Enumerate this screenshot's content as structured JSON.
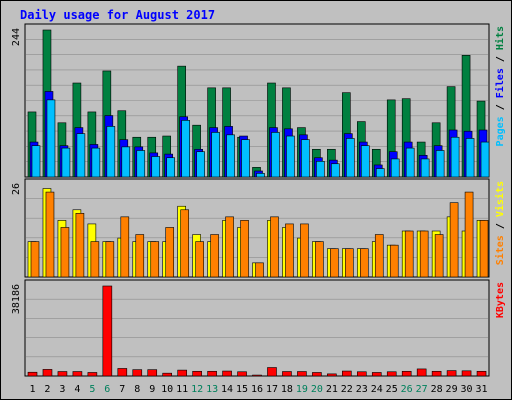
{
  "chart_data": {
    "type": "bar",
    "title": "Daily usage for August 2017",
    "days": [
      "1",
      "2",
      "3",
      "4",
      "5",
      "6",
      "7",
      "8",
      "9",
      "10",
      "11",
      "12",
      "13",
      "14",
      "15",
      "16",
      "17",
      "18",
      "19",
      "20",
      "21",
      "22",
      "23",
      "24",
      "25",
      "26",
      "27",
      "28",
      "29",
      "30",
      "31"
    ],
    "weekend_days": [
      "5",
      "6",
      "12",
      "13",
      "19",
      "20",
      "26",
      "27"
    ],
    "panels": [
      {
        "id": "hits",
        "ylabel_parts": [
          "Pages",
          "Files",
          "Hits"
        ],
        "ymax_label": "244",
        "ymax": 244,
        "series": [
          {
            "name": "Hits",
            "color": "#008040",
            "values": [
              108,
              244,
              90,
              156,
              108,
              176,
              110,
              66,
              66,
              68,
              184,
              86,
              148,
              148,
              66,
              16,
              156,
              148,
              82,
              46,
              46,
              140,
              92,
              46,
              128,
              130,
              58,
              90,
              150,
              202,
              126
            ]
          },
          {
            "name": "Files",
            "color": "#0000FF",
            "values": [
              58,
              142,
              52,
              82,
              54,
              102,
              62,
              50,
              40,
              38,
              100,
              46,
              82,
              84,
              68,
              10,
              82,
              80,
              70,
              32,
              28,
              72,
              58,
              20,
              42,
              58,
              36,
              52,
              78,
              76,
              78
            ]
          },
          {
            "name": "Pages",
            "color": "#00BFFF",
            "values": [
              52,
              128,
              48,
              72,
              48,
              84,
              50,
              44,
              34,
              32,
              94,
              42,
              74,
              70,
              62,
              6,
              74,
              68,
              62,
              26,
              22,
              64,
              52,
              14,
              30,
              48,
              30,
              44,
              66,
              64,
              58
            ]
          }
        ]
      },
      {
        "id": "visits",
        "ylabel_parts": [
          "Sites",
          "Visits"
        ],
        "ymax_label": "26",
        "ymax": 26,
        "series": [
          {
            "name": "Visits",
            "color": "#FFFF00",
            "values": [
              10,
              25,
              16,
              19,
              15,
              10,
              11,
              10,
              10,
              10,
              20,
              12,
              10,
              16,
              14,
              4,
              16,
              14,
              11,
              10,
              8,
              8,
              8,
              10,
              9,
              13,
              13,
              13,
              17,
              13,
              16
            ]
          },
          {
            "name": "Sites",
            "color": "#FF8000",
            "values": [
              10,
              24,
              14,
              18,
              10,
              10,
              17,
              12,
              10,
              14,
              19,
              10,
              12,
              17,
              16,
              4,
              17,
              15,
              15,
              10,
              8,
              8,
              8,
              12,
              9,
              13,
              13,
              12,
              21,
              24,
              16
            ]
          }
        ]
      },
      {
        "id": "kbytes",
        "ylabel_parts": [
          "KBytes"
        ],
        "ymax_label": "38186",
        "ymax": 38186,
        "series": [
          {
            "name": "KBytes",
            "color": "#FF0000",
            "values": [
              1600,
              2800,
              1900,
              1900,
              1500,
              38186,
              3200,
              2700,
              2700,
              1200,
              2500,
              2000,
              2000,
              2100,
              1800,
              400,
              3600,
              1900,
              1900,
              1500,
              900,
              2100,
              1800,
              1500,
              1800,
              2000,
              3000,
              2000,
              2300,
              2200,
              2000
            ]
          }
        ]
      }
    ],
    "colors": {
      "Hits": "#008040",
      "Files": "#0000FF",
      "Pages": "#00BFFF",
      "Visits": "#FFFF00",
      "Sites": "#FF8000",
      "KBytes": "#FF0000",
      "title": "#0000FF",
      "weekend": "#00805C",
      "weekday": "#000000",
      "plot_bg": "#C0C0C0",
      "frame_bg": "#C0C0C0",
      "separator": "#8C8C8C"
    },
    "grid": true,
    "legend": "right, vertical"
  }
}
